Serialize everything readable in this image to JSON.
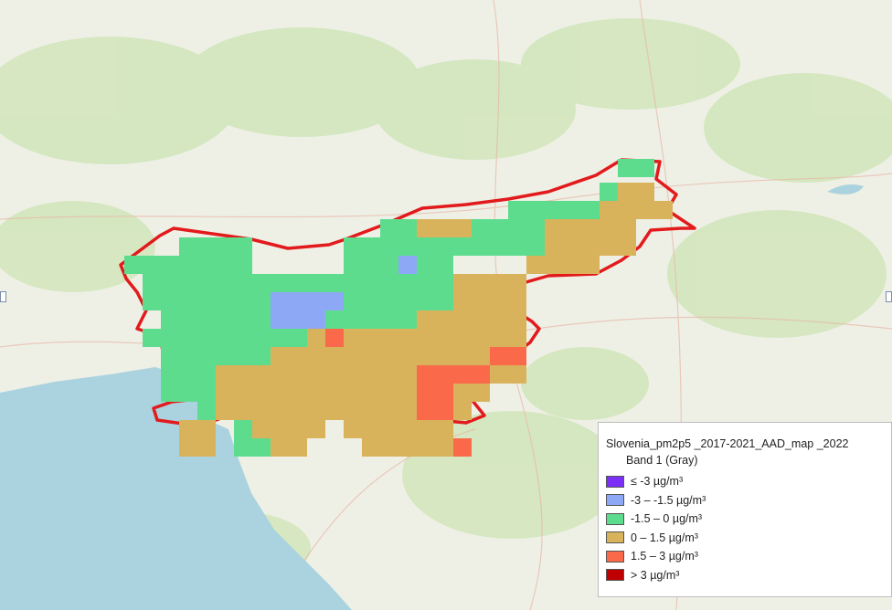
{
  "legend": {
    "title": "Slovenia_pm2p5 _2017-2021_AAD_map _2022",
    "band": "Band 1 (Gray)",
    "classes": [
      {
        "label": "≤ -3 µg/m³",
        "color": "#7b2ff7"
      },
      {
        "label": "-3 – -1.5 µg/m³",
        "color": "#8da8f5"
      },
      {
        "label": "-1.5 – 0 µg/m³",
        "color": "#5ddc8e"
      },
      {
        "label": "0 – 1.5 µg/m³",
        "color": "#d9b25c"
      },
      {
        "label": "1.5 – 3 µg/m³",
        "color": "#fa6a4a"
      },
      {
        "label": "> 3 µg/m³",
        "color": "#c00000"
      }
    ]
  },
  "colors": {
    "land": "#eef0e6",
    "sea": "#aad3df",
    "border": "#e31a1c"
  }
}
